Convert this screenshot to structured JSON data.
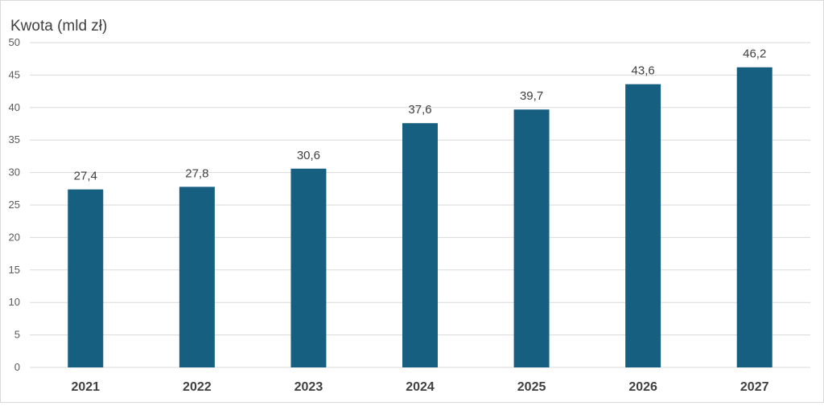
{
  "chart_data": {
    "type": "bar",
    "title": "",
    "xlabel": "",
    "ylabel": "Kwota (mld zł)",
    "categories": [
      "2021",
      "2022",
      "2023",
      "2024",
      "2025",
      "2026",
      "2027"
    ],
    "values": [
      27.4,
      27.8,
      30.6,
      37.6,
      39.7,
      43.6,
      46.2
    ],
    "data_labels": [
      "27,4",
      "27,8",
      "30,6",
      "37,6",
      "39,7",
      "43,6",
      "46,2"
    ],
    "ylim": [
      0,
      50
    ],
    "yticks": [
      0,
      5,
      10,
      15,
      20,
      25,
      30,
      35,
      40,
      45,
      50
    ],
    "grid": true,
    "legend": "none",
    "colors": {
      "bar": "#165f80",
      "grid": "#d9d9d9"
    }
  }
}
